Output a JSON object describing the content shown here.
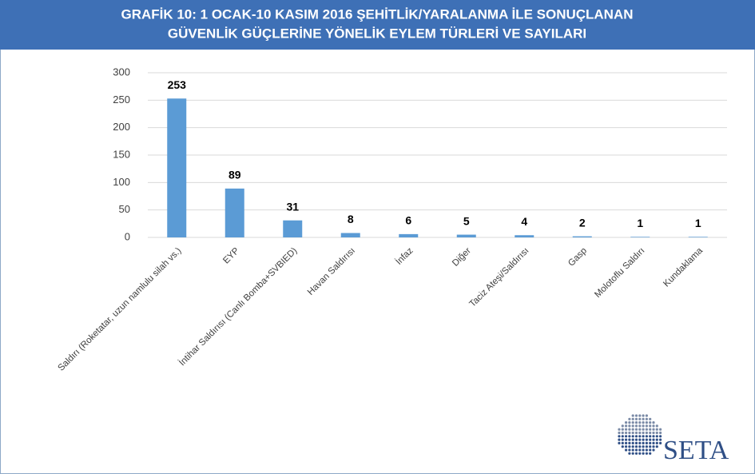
{
  "chart_data": {
    "type": "bar",
    "title": [
      "GRAFİK 10: 1 OCAK-10 KASIM 2016 ŞEHİTLİK/YARALANMA İLE SONUÇLANAN",
      "GÜVENLİK GÜÇLERİNE YÖNELİK EYLEM TÜRLERİ VE SAYILARI"
    ],
    "categories": [
      "Saldırı (Roketatar, uzun namlulu silah vs.)",
      "EYP",
      "İntihar Saldırısı (Canlı Bomba+SVBIED)",
      "Havan Saldırısı",
      "İnfaz",
      "Diğer",
      "Taciz Ateşi/Saldırısı",
      "Gasp",
      "Molotoflu Saldırı",
      "Kundaklama"
    ],
    "values": [
      253,
      89,
      31,
      8,
      6,
      5,
      4,
      2,
      1,
      1
    ],
    "color": "#5b9bd5",
    "ylim": [
      0,
      300
    ],
    "yticks": [
      0,
      50,
      100,
      150,
      200,
      250,
      300
    ],
    "grid": true,
    "logo": "SETA"
  }
}
